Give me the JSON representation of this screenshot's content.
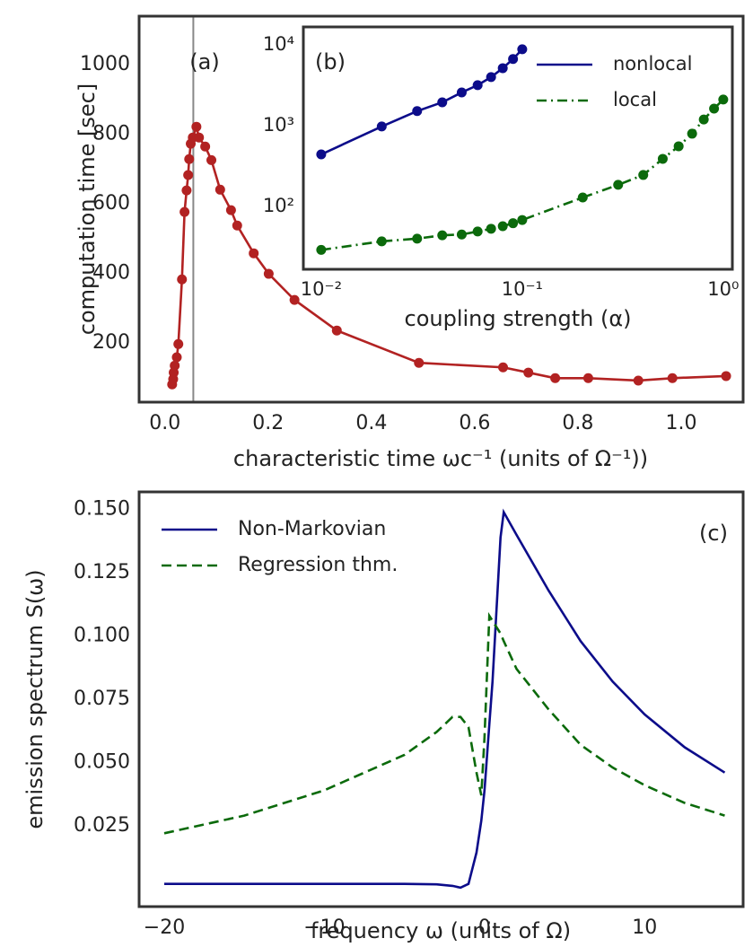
{
  "chart_data": [
    {
      "type": "line",
      "panel_label": "(a)",
      "xlabel": "characteristic time ωc⁻¹ (units of Ω⁻¹))",
      "ylabel": "computation time [sec]",
      "xlim": [
        -0.05,
        1.12
      ],
      "ylim": [
        30,
        1140
      ],
      "xticks": [
        {
          "value": 0,
          "label": "0.0"
        },
        0.2,
        0.4,
        0.6,
        0.8,
        {
          "value": 1,
          "label": "1.0"
        }
      ],
      "yticks": [
        200,
        400,
        600,
        800,
        1000
      ],
      "vline": 0.055,
      "vline_color": "#888888",
      "color": "#b22222",
      "linestyle": "solid",
      "markers": true,
      "x": [
        0.014,
        0.016,
        0.017,
        0.019,
        0.023,
        0.026,
        0.033,
        0.038,
        0.042,
        0.045,
        0.047,
        0.05,
        0.054,
        0.061,
        0.066,
        0.078,
        0.09,
        0.107,
        0.128,
        0.14,
        0.172,
        0.201,
        0.251,
        0.333,
        0.492,
        0.655,
        0.704,
        0.756,
        0.82,
        0.917,
        0.983,
        1.087
      ],
      "values": [
        81,
        96,
        115,
        135,
        159,
        197,
        383,
        577,
        639,
        683,
        729,
        773,
        791,
        822,
        791,
        765,
        726,
        641,
        582,
        538,
        458,
        399,
        324,
        236,
        143,
        130,
        115,
        99,
        99,
        92,
        99,
        105
      ]
    },
    {
      "type": "line",
      "panel_label": "(b)",
      "xlabel": "coupling strength (α)",
      "log_x": true,
      "log_y": true,
      "xlim": [
        0.00815,
        1.11
      ],
      "ylim": [
        16.7,
        16600
      ],
      "xticks": [
        {
          "value": 0.01,
          "label": "10⁻²"
        },
        {
          "value": 0.1,
          "label": "10⁻¹"
        },
        {
          "value": 1,
          "label": "10⁰"
        }
      ],
      "yticks": [
        {
          "value": 100,
          "label": "10²"
        },
        {
          "value": 1000,
          "label": "10³"
        },
        {
          "value": 10000,
          "label": "10⁴"
        }
      ],
      "legend": "upper right",
      "markers": true,
      "series": [
        {
          "name": "nonlocal",
          "color": "#0c0c8a",
          "linestyle": "solid",
          "x": [
            0.01,
            0.02,
            0.03,
            0.04,
            0.05,
            0.06,
            0.07,
            0.08,
            0.09,
            0.1
          ],
          "values": [
            440,
            975,
            1510,
            1940,
            2570,
            3160,
            3980,
            5130,
            6660,
            8800
          ]
        },
        {
          "name": "local",
          "color": "#0b6a0b",
          "linestyle": "dashdot",
          "x": [
            0.01,
            0.02,
            0.03,
            0.04,
            0.05,
            0.06,
            0.07,
            0.08,
            0.09,
            0.1,
            0.2,
            0.3,
            0.4,
            0.5,
            0.6,
            0.7,
            0.8,
            0.9,
            1.0
          ],
          "values": [
            29,
            37,
            40,
            44,
            45,
            49,
            53,
            57,
            62,
            68,
            129,
            185,
            245,
            388,
            555,
            794,
            1190,
            1620,
            2100
          ]
        }
      ]
    },
    {
      "type": "line",
      "panel_label": "(c)",
      "xlabel": "frequency ω (units of Ω)",
      "ylabel": "emission spectrum S(ω)",
      "xlim": [
        -21.57,
        16.15
      ],
      "ylim": [
        -0.007,
        0.157
      ],
      "xticks": [
        {
          "value": -20,
          "label": "−20"
        },
        {
          "value": -10,
          "label": "−10"
        },
        0,
        10
      ],
      "yticks": [
        0.025,
        {
          "value": 0.05,
          "label": "0.050"
        },
        0.075,
        {
          "value": 0.1,
          "label": "0.100"
        },
        0.125,
        {
          "value": 0.15,
          "label": "0.150"
        }
      ],
      "legend": "upper left",
      "markers": false,
      "x": [
        -20,
        -15,
        -10,
        -5,
        -3,
        -2,
        -1.5,
        -1,
        -0.5,
        -0.2,
        0,
        0.3,
        0.5,
        1,
        1.2,
        2,
        4,
        6,
        8,
        10,
        12.5,
        15
      ],
      "series": [
        {
          "name": "Non-Markovian",
          "color": "#0c0c8a",
          "linestyle": "solid",
          "values": [
            0.002,
            0.002,
            0.002,
            0.002,
            0.0018,
            0.0012,
            0.0005,
            0.002,
            0.0144,
            0.027,
            0.039,
            0.065,
            0.082,
            0.139,
            0.149,
            0.14,
            0.118,
            0.098,
            0.082,
            0.069,
            0.056,
            0.046
          ]
        },
        {
          "name": "Regression thm.",
          "color": "#0b6a0b",
          "linestyle": "dashed",
          "values": [
            0.022,
            0.029,
            0.039,
            0.053,
            0.062,
            0.068,
            0.068,
            0.064,
            0.046,
            0.037,
            0.06,
            0.108,
            0.106,
            0.101,
            0.098,
            0.087,
            0.071,
            0.057,
            0.048,
            0.041,
            0.034,
            0.029
          ]
        }
      ]
    }
  ]
}
